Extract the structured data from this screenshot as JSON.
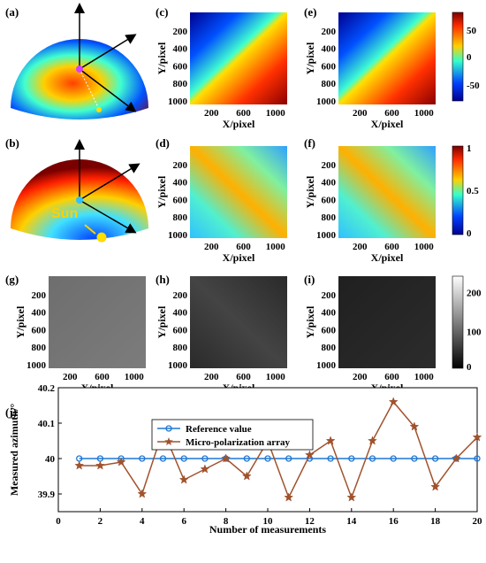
{
  "panels": {
    "a": "(a)",
    "b": "(b)",
    "c": "(c)",
    "d": "(d)",
    "e": "(e)",
    "f": "(f)",
    "g": "(g)",
    "h": "(h)",
    "i": "(i)",
    "j": "(j)"
  },
  "sun_label": "Sun",
  "image_axes": {
    "xlabel": "X/pixel",
    "ylabel": "Y/pixel",
    "xticks": [
      "200",
      "600",
      "1000"
    ],
    "yticks": [
      "200",
      "400",
      "600",
      "800",
      "1000"
    ]
  },
  "colorbars": {
    "aop": {
      "ticks": [
        "50",
        "0",
        "-50"
      ],
      "colors": [
        "#7a0000",
        "#ff2a00",
        "#ffd000",
        "#33ffcc",
        "#0040ff",
        "#00008f"
      ]
    },
    "dop": {
      "ticks": [
        "1",
        "0.5",
        "0"
      ],
      "colors": [
        "#7a0000",
        "#ff2a00",
        "#ffd000",
        "#33ffcc",
        "#0040ff",
        "#00008f"
      ]
    },
    "intensity": {
      "ticks": [
        "200",
        "100",
        "0"
      ],
      "colors": [
        "#ffffff",
        "#000000"
      ]
    }
  },
  "chart_data": {
    "type": "line",
    "xlabel": "Number of measurements",
    "ylabel": "Measured azimuth/°",
    "xlim": [
      0,
      20
    ],
    "ylim": [
      39.85,
      40.2
    ],
    "xticks": [
      0,
      2,
      4,
      6,
      8,
      10,
      12,
      14,
      16,
      18,
      20
    ],
    "yticks": [
      39.9,
      40,
      40.1,
      40.2
    ],
    "ytick_labels": [
      "39.9",
      "40",
      "40.1",
      "40.2"
    ],
    "legend_position": "top-left",
    "series": [
      {
        "name": "Reference value",
        "color": "#1f77d4",
        "marker": "circle",
        "x": [
          1,
          2,
          3,
          4,
          5,
          6,
          7,
          8,
          9,
          10,
          11,
          12,
          13,
          14,
          15,
          16,
          17,
          18,
          19,
          20
        ],
        "y": [
          40,
          40,
          40,
          40,
          40,
          40,
          40,
          40,
          40,
          40,
          40,
          40,
          40,
          40,
          40,
          40,
          40,
          40,
          40,
          40
        ]
      },
      {
        "name": "Micro-polarization array",
        "color": "#a0522d",
        "marker": "star",
        "x": [
          1,
          2,
          3,
          4,
          5,
          6,
          7,
          8,
          9,
          10,
          11,
          12,
          13,
          14,
          15,
          16,
          17,
          18,
          19,
          20
        ],
        "y": [
          39.98,
          39.98,
          39.99,
          39.9,
          40.08,
          39.94,
          39.97,
          40.0,
          39.95,
          40.05,
          39.89,
          40.01,
          40.05,
          39.89,
          40.05,
          40.16,
          40.09,
          39.92,
          40.0,
          40.06
        ]
      }
    ]
  }
}
